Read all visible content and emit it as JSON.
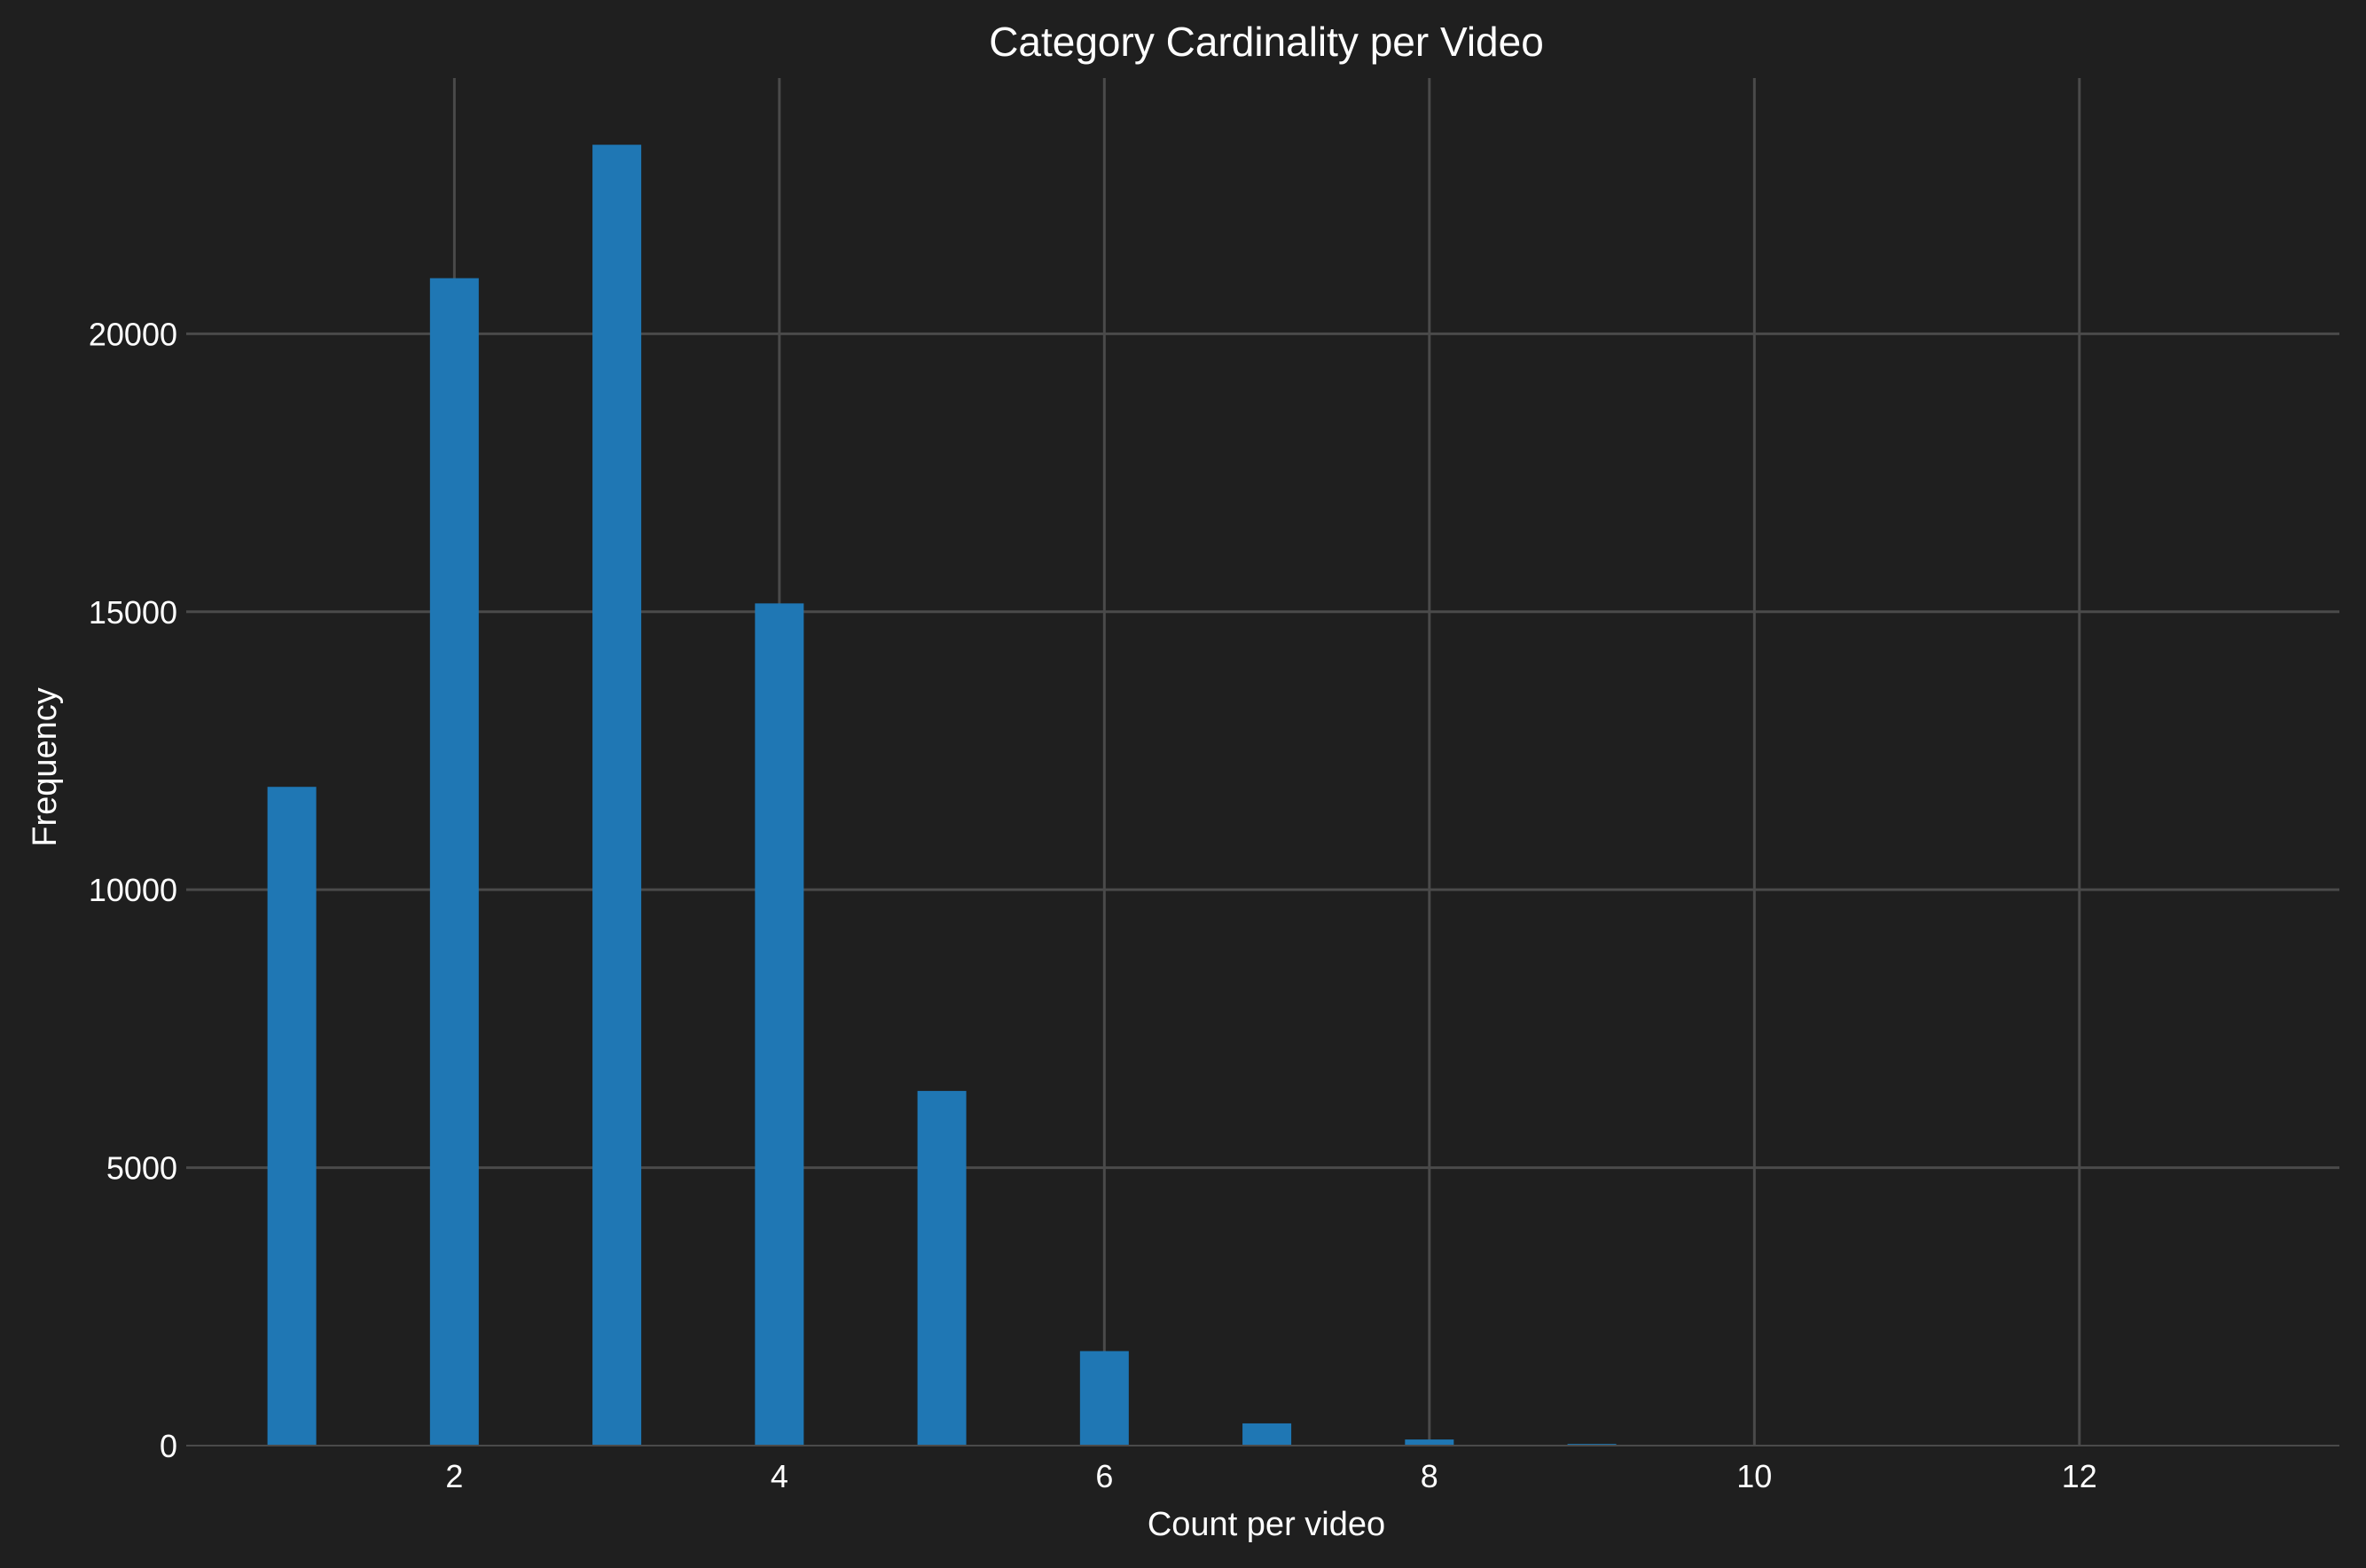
{
  "chart_data": {
    "type": "bar",
    "title": "Category Cardinality per Video",
    "xlabel": "Count per video",
    "ylabel": "Frequency",
    "x": [
      1,
      2,
      3,
      4,
      5,
      6,
      7,
      8,
      9,
      10,
      11,
      12,
      13
    ],
    "values": [
      11850,
      21000,
      23400,
      15150,
      6380,
      1700,
      400,
      110,
      30,
      8,
      3,
      1,
      1
    ],
    "xlim": [
      0.35,
      13.6
    ],
    "ylim": [
      0,
      24600
    ],
    "xticks": [
      2,
      4,
      6,
      8,
      10,
      12
    ],
    "yticks": [
      0,
      5000,
      10000,
      15000,
      20000
    ],
    "grid": true,
    "colors": {
      "bar": "#1f77b4",
      "background": "#1f1f1f",
      "grid": "#4a4a4a",
      "text": "#ffffff"
    }
  }
}
